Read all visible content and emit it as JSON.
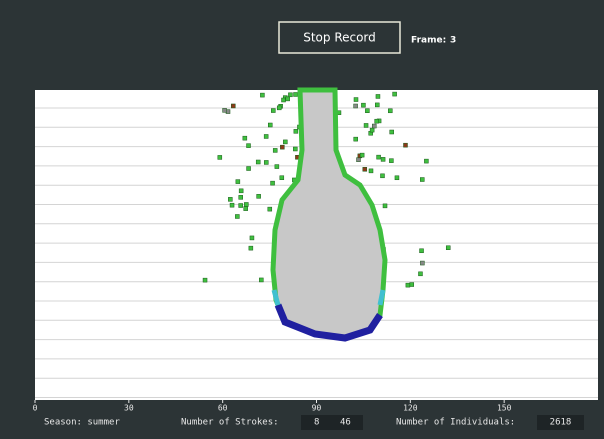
{
  "toolbar": {
    "button": "Stop Record",
    "frame_label": "Frame:",
    "frame_value": "3"
  },
  "axis": {
    "xlim": [
      0,
      180
    ],
    "xticks": [
      0,
      30,
      60,
      90,
      120,
      150
    ]
  },
  "status": {
    "season": "Season: summer",
    "strokes_label": "Number of Strokes:",
    "strokes_a": "8",
    "strokes_b": "46",
    "individuals_label": "Number of Individuals:",
    "individuals_value": "2618"
  }
}
